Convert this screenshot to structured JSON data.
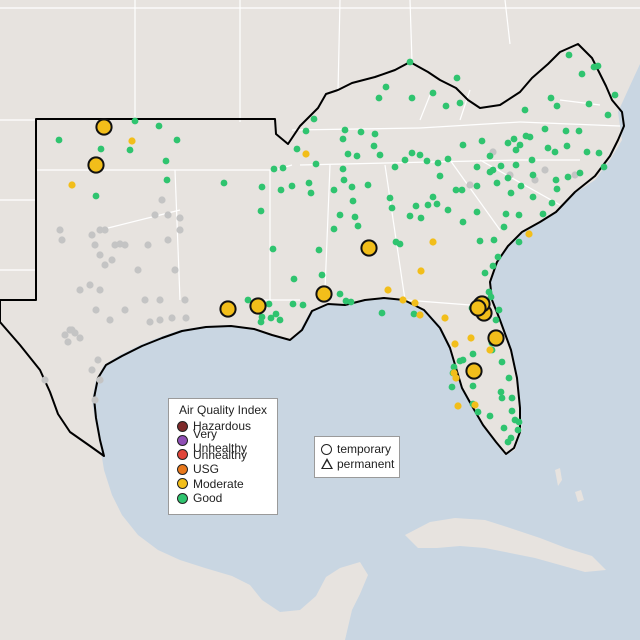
{
  "legend_aqi": {
    "title": "Air Quality Index",
    "items": [
      {
        "label": "Hazardous",
        "color": "#7e2a2a"
      },
      {
        "label": "Very Unhealthy",
        "color": "#8f4fb5"
      },
      {
        "label": "Unhealthy",
        "color": "#e0453a"
      },
      {
        "label": "USG",
        "color": "#e8781c"
      },
      {
        "label": "Moderate",
        "color": "#f2be1a"
      },
      {
        "label": "Good",
        "color": "#2fc46f"
      }
    ]
  },
  "legend_monitor_type": {
    "items": [
      {
        "label": "temporary",
        "icon": "circle-icon"
      },
      {
        "label": "permanent",
        "icon": "triangle-icon"
      }
    ]
  },
  "colors": {
    "ocean": "#c9d6e2",
    "land": "#e7e3df",
    "state_border": "#ffffff",
    "region_outline": "#000000",
    "no_data": "#c4c4c4"
  },
  "map": {
    "region": "Southeastern United States",
    "outlined_area": "Oklahoma, Texas and the southeastern states",
    "basemap": "light gray with blue water"
  },
  "monitor_counts": {
    "large_moderate_temporary": 12,
    "small_moderate": 18,
    "small_good": 160,
    "no_data_gray": 50
  }
}
